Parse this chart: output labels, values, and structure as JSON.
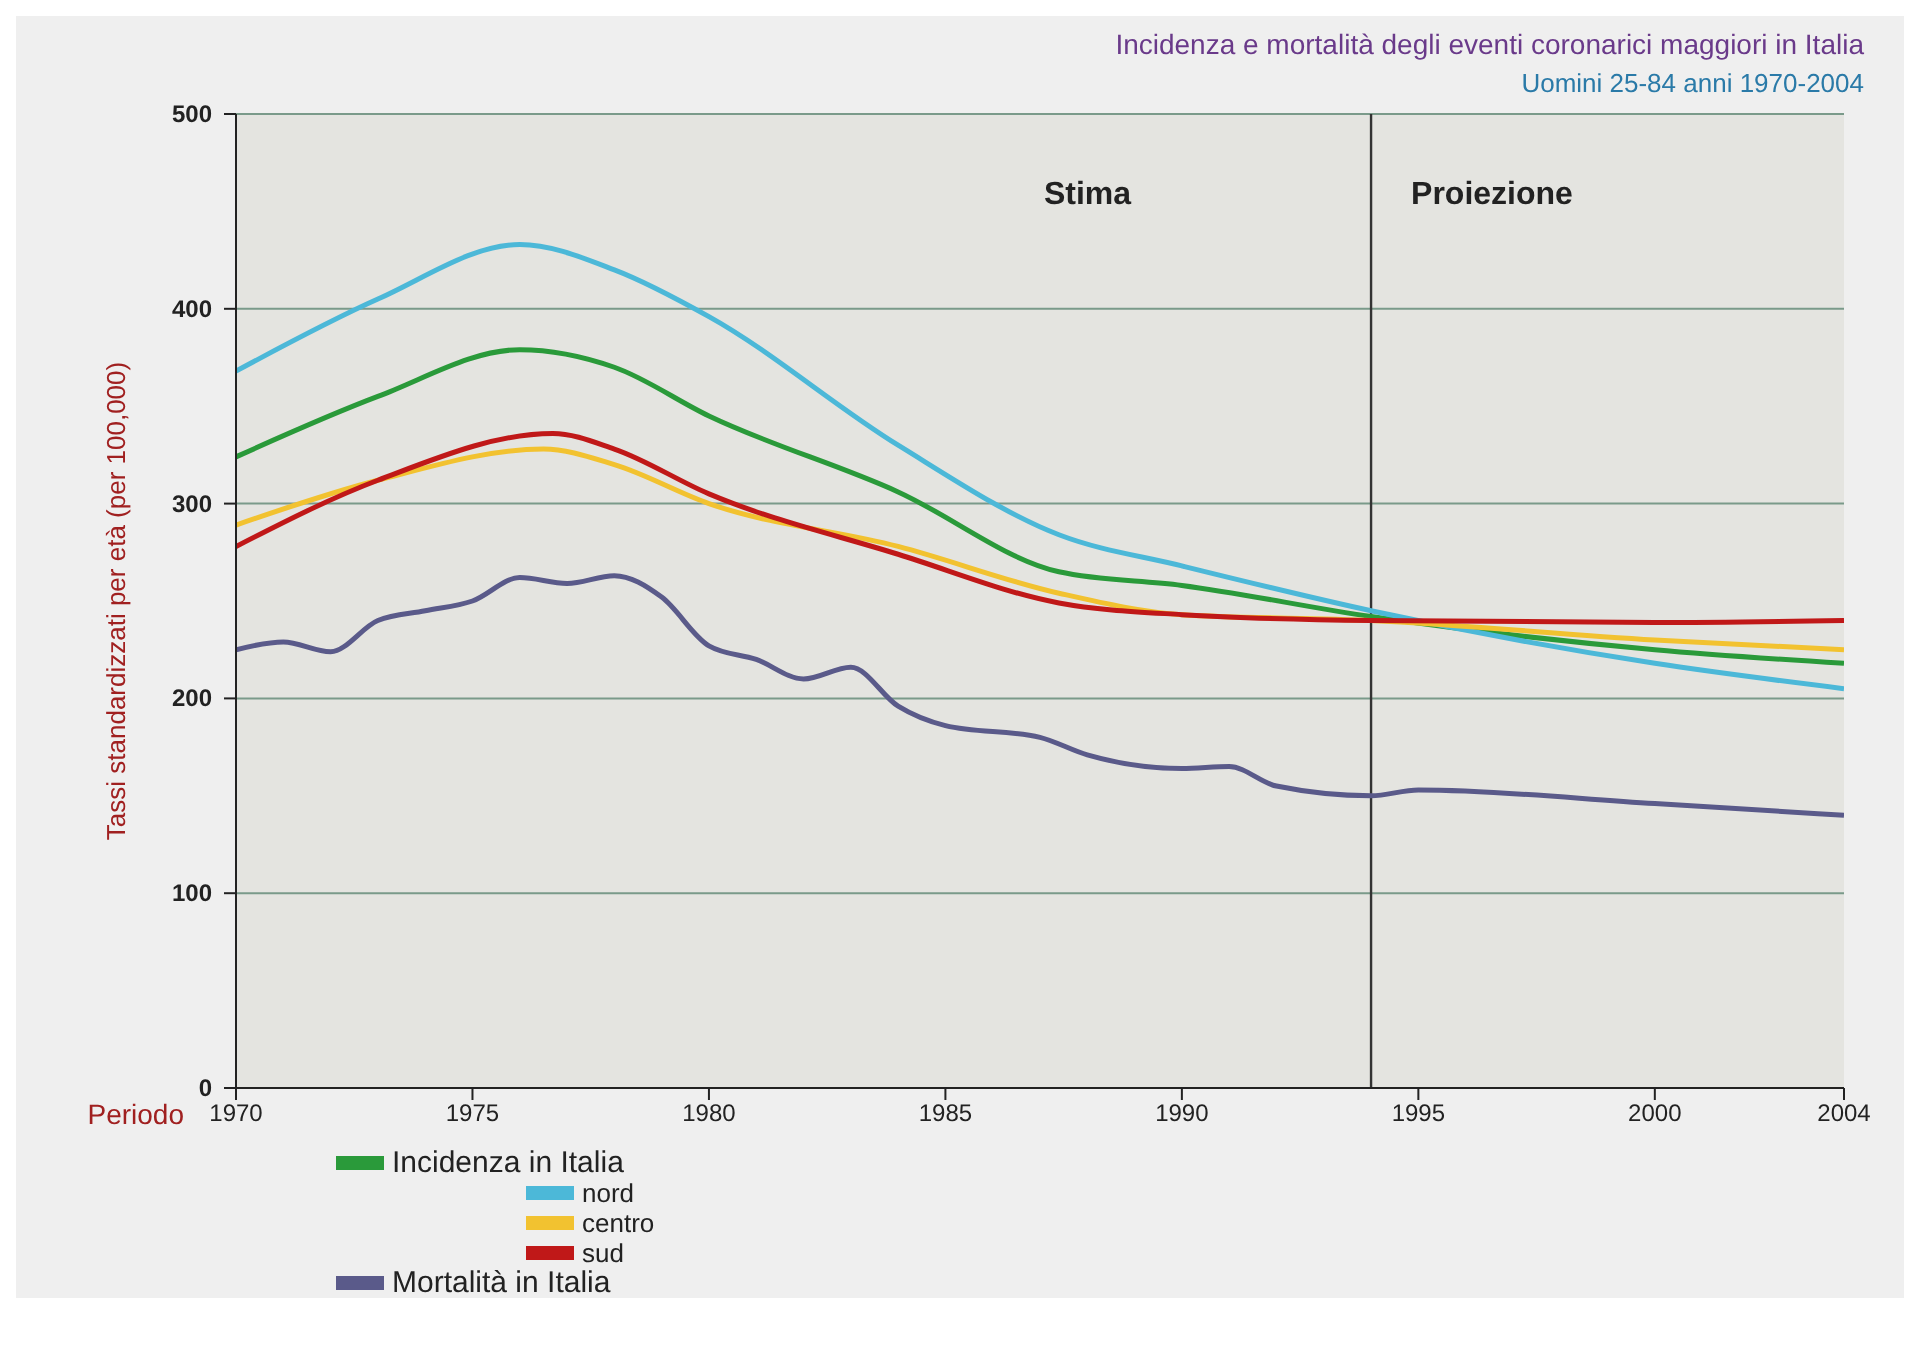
{
  "chart_data": {
    "type": "line",
    "title": "Incidenza e mortalità degli eventi coronarici maggiori in Italia",
    "subtitle": "Uomini 25-84 anni 1970-2004",
    "xlabel": "Periodo",
    "ylabel": "Tassi standardizzati per età (per 100,000)",
    "annotations": [
      "Stima",
      "Proiezione"
    ],
    "xlim": [
      1970,
      2004
    ],
    "xticks": [
      1970,
      1975,
      1980,
      1985,
      1990,
      1995,
      2000,
      2004
    ],
    "ylim": [
      0,
      500
    ],
    "yticks": [
      0,
      100,
      200,
      300,
      400,
      500
    ],
    "grid": "y",
    "legend": "bottom left",
    "marker": "none",
    "line_style": "solid",
    "ref_lines": [
      {
        "axis": "x",
        "value": 1994,
        "label": null,
        "color": "#333333"
      }
    ],
    "series": [
      {
        "name": "Incidenza in Italia",
        "color": "#2a9a3a",
        "x": [
          1970,
          1973,
          1976,
          1978,
          1980,
          1984,
          1987.4,
          1990,
          1994,
          2000,
          2004
        ],
        "values": [
          324,
          355,
          379,
          370,
          345,
          306,
          265,
          258,
          242,
          225,
          218
        ]
      },
      {
        "name": "nord",
        "color": "#4cb8d8",
        "x": [
          1970,
          1973,
          1976,
          1978,
          1980,
          1984,
          1987.4,
          1990,
          1994,
          2000,
          2004
        ],
        "values": [
          368,
          405,
          433,
          420,
          396,
          330,
          284,
          268,
          245,
          218,
          205
        ]
      },
      {
        "name": "centro",
        "color": "#f2c230",
        "x": [
          1970,
          1973,
          1976.5,
          1978,
          1980,
          1984,
          1987.4,
          1990,
          1994,
          2000,
          2004
        ],
        "values": [
          289,
          312,
          328,
          320,
          300,
          278,
          254,
          243,
          240,
          230,
          225
        ]
      },
      {
        "name": "sud",
        "color": "#c01818",
        "x": [
          1970,
          1973,
          1976.7,
          1978,
          1980,
          1984,
          1987.4,
          1990,
          1994,
          2000,
          2004
        ],
        "values": [
          278,
          312,
          336,
          328,
          305,
          274,
          249,
          243,
          240,
          239,
          240
        ]
      },
      {
        "name": "Mortalità in Italia",
        "color": "#5a5a8a",
        "x": [
          1970,
          1971,
          1972,
          1973,
          1974,
          1975,
          1976,
          1977,
          1978,
          1979,
          1980,
          1981,
          1982,
          1983,
          1984,
          1985,
          1987,
          1988,
          1990,
          1991,
          1992,
          1994,
          1995,
          2000,
          2004
        ],
        "values": [
          225,
          229,
          224,
          240,
          245,
          250,
          262,
          259,
          263,
          252,
          227,
          220,
          210,
          216,
          196,
          186,
          180,
          171,
          164,
          165,
          155,
          150,
          153,
          146,
          140
        ]
      }
    ]
  }
}
